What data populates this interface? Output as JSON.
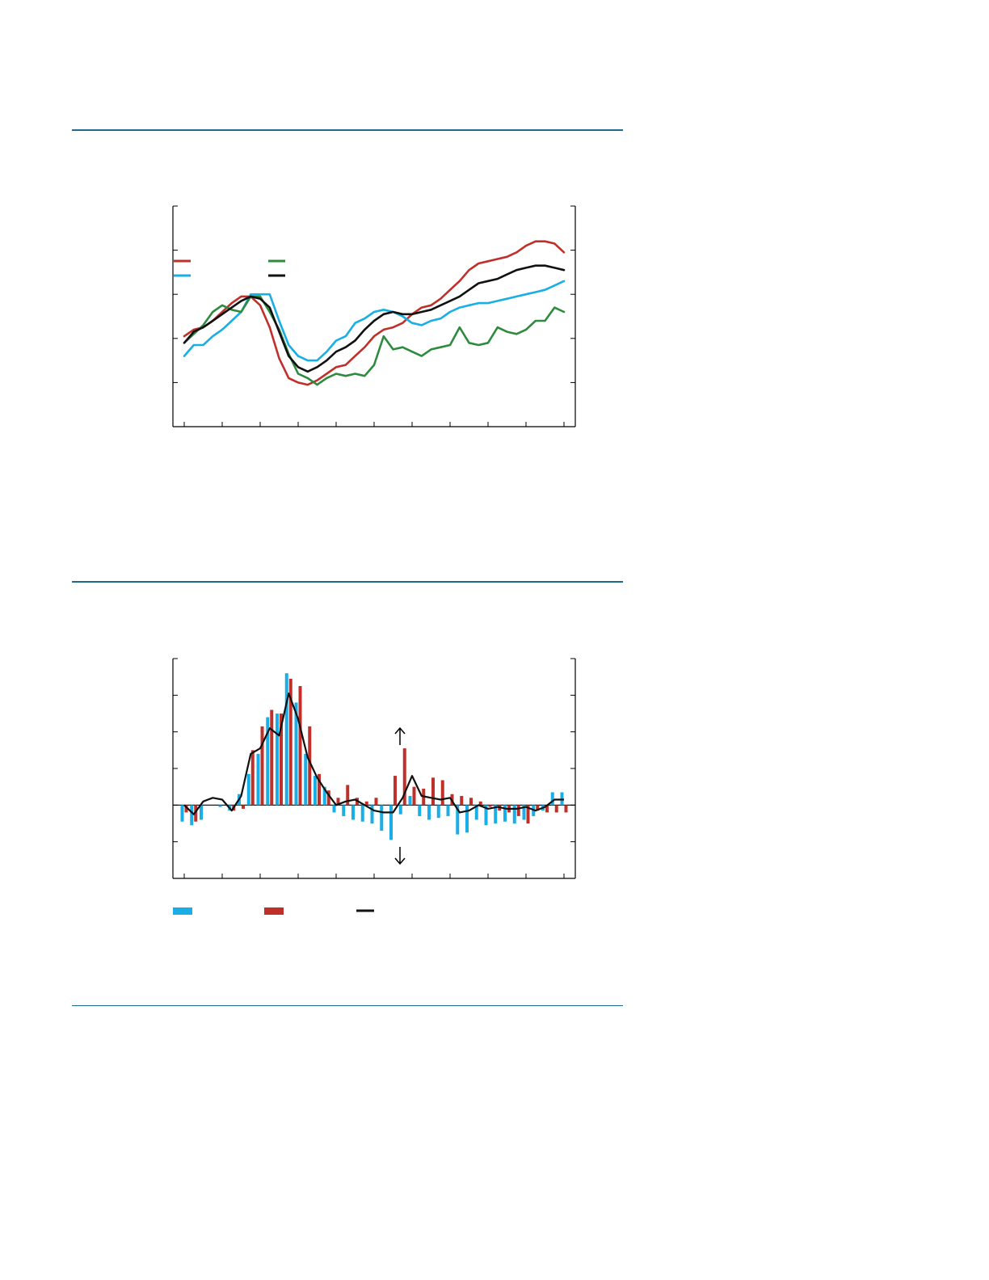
{
  "colors": {
    "rule": "#1f6a8a",
    "red": "#c0302a",
    "blue": "#19aee6",
    "green": "#2e8b3e",
    "black": "#111111"
  },
  "chart_data": [
    {
      "type": "line",
      "x": [
        0,
        1,
        2,
        3,
        4,
        5,
        6,
        7,
        8,
        9,
        10,
        11,
        12,
        13,
        14,
        15,
        16,
        17,
        18,
        19,
        20,
        21,
        22,
        23,
        24,
        25,
        26,
        27,
        28,
        29,
        30,
        31,
        32,
        33,
        34,
        35,
        36,
        37,
        38,
        39,
        40
      ],
      "ylim": [
        -5,
        5
      ],
      "yticks": [
        -5,
        -3,
        -1,
        1,
        3,
        5
      ],
      "xticks": [
        0,
        4,
        8,
        12,
        16,
        20,
        24,
        28,
        32,
        36,
        40
      ],
      "grid": false,
      "legend": "bottom-left",
      "series": [
        {
          "color_key": "red",
          "values": [
            -0.9,
            -0.6,
            -0.5,
            -0.2,
            0.2,
            0.6,
            0.9,
            0.9,
            0.5,
            -0.5,
            -1.9,
            -2.8,
            -3.0,
            -3.1,
            -2.9,
            -2.6,
            -2.3,
            -2.2,
            -1.8,
            -1.4,
            -0.9,
            -0.6,
            -0.5,
            -0.3,
            0.1,
            0.4,
            0.5,
            0.8,
            1.2,
            1.6,
            2.1,
            2.4,
            2.5,
            2.6,
            2.7,
            2.9,
            3.2,
            3.4,
            3.4,
            3.3,
            2.9
          ]
        },
        {
          "color_key": "blue",
          "values": [
            -1.8,
            -1.3,
            -1.3,
            -0.9,
            -0.6,
            -0.2,
            0.2,
            1.0,
            1.0,
            1.0,
            -0.2,
            -1.3,
            -1.8,
            -2.0,
            -2.0,
            -1.6,
            -1.1,
            -0.9,
            -0.3,
            -0.1,
            0.2,
            0.3,
            0.2,
            0.0,
            -0.3,
            -0.4,
            -0.2,
            -0.1,
            0.2,
            0.4,
            0.5,
            0.6,
            0.6,
            0.7,
            0.8,
            0.9,
            1.0,
            1.1,
            1.2,
            1.4,
            1.6
          ]
        },
        {
          "color_key": "green",
          "values": [
            -1.2,
            -0.8,
            -0.4,
            0.2,
            0.5,
            0.3,
            0.2,
            0.9,
            0.9,
            0.2,
            -0.6,
            -1.7,
            -2.6,
            -2.8,
            -3.1,
            -2.8,
            -2.6,
            -2.7,
            -2.6,
            -2.7,
            -2.2,
            -0.9,
            -1.5,
            -1.4,
            -1.6,
            -1.8,
            -1.5,
            -1.4,
            -1.3,
            -0.5,
            -1.2,
            -1.3,
            -1.2,
            -0.5,
            -0.7,
            -0.8,
            -0.6,
            -0.2,
            -0.2,
            0.4,
            0.2
          ]
        },
        {
          "color_key": "black",
          "values": [
            -1.2,
            -0.7,
            -0.5,
            -0.2,
            0.1,
            0.4,
            0.7,
            0.9,
            0.8,
            0.4,
            -0.7,
            -1.8,
            -2.3,
            -2.5,
            -2.3,
            -2.0,
            -1.6,
            -1.4,
            -1.1,
            -0.6,
            -0.2,
            0.1,
            0.2,
            0.1,
            0.1,
            0.2,
            0.3,
            0.5,
            0.7,
            0.9,
            1.2,
            1.5,
            1.6,
            1.7,
            1.9,
            2.1,
            2.2,
            2.3,
            2.3,
            2.2,
            2.1
          ]
        }
      ]
    },
    {
      "type": "bar",
      "x": [
        0,
        1,
        2,
        3,
        4,
        5,
        6,
        7,
        8,
        9,
        10,
        11,
        12,
        13,
        14,
        15,
        16,
        17,
        18,
        19,
        20,
        21,
        22,
        23,
        24,
        25,
        26,
        27,
        28,
        29,
        30,
        31,
        32,
        33,
        34,
        35,
        36,
        37,
        38,
        39,
        40
      ],
      "ylim": [
        -2,
        4
      ],
      "yticks": [
        -2,
        -1,
        0,
        1,
        2,
        3,
        4
      ],
      "xticks": [
        0,
        4,
        8,
        12,
        16,
        20,
        24,
        28,
        32,
        36,
        40
      ],
      "grid": false,
      "legend": "bottom-left",
      "arrows": [
        "up",
        "down"
      ],
      "series": [
        {
          "color_key": "blue",
          "values": [
            -0.45,
            -0.55,
            -0.4,
            0.0,
            -0.05,
            -0.15,
            0.3,
            0.85,
            1.4,
            2.4,
            2.5,
            3.6,
            2.8,
            1.4,
            0.8,
            0.5,
            -0.2,
            -0.3,
            -0.4,
            -0.45,
            -0.5,
            -0.7,
            -0.95,
            -0.25,
            0.25,
            -0.3,
            -0.4,
            -0.35,
            -0.3,
            -0.8,
            -0.75,
            -0.4,
            -0.55,
            -0.5,
            -0.45,
            -0.5,
            -0.4,
            -0.3,
            -0.15,
            0.35,
            0.35
          ]
        },
        {
          "color_key": "red",
          "values": [
            -0.2,
            -0.45,
            0.0,
            0.0,
            0.0,
            -0.15,
            -0.1,
            1.5,
            2.15,
            2.6,
            2.5,
            3.45,
            3.25,
            2.15,
            0.85,
            0.4,
            0.2,
            0.55,
            0.2,
            0.1,
            0.2,
            0.0,
            0.8,
            1.55,
            0.5,
            0.45,
            0.75,
            0.68,
            0.3,
            0.25,
            0.2,
            0.1,
            -0.05,
            -0.15,
            -0.2,
            -0.3,
            -0.5,
            -0.15,
            -0.2,
            -0.2,
            -0.2
          ]
        },
        {
          "color_key": "black",
          "type": "line",
          "values": [
            0.0,
            -0.25,
            0.1,
            0.2,
            0.15,
            -0.15,
            0.25,
            1.4,
            1.55,
            2.1,
            1.9,
            3.05,
            2.35,
            1.3,
            0.75,
            0.35,
            0.0,
            0.1,
            0.15,
            0.0,
            -0.15,
            -0.2,
            -0.2,
            0.2,
            0.8,
            0.25,
            0.2,
            0.15,
            0.2,
            -0.2,
            -0.15,
            0.0,
            -0.1,
            -0.05,
            -0.1,
            -0.1,
            -0.05,
            -0.15,
            -0.05,
            0.15,
            0.15
          ]
        }
      ]
    }
  ]
}
